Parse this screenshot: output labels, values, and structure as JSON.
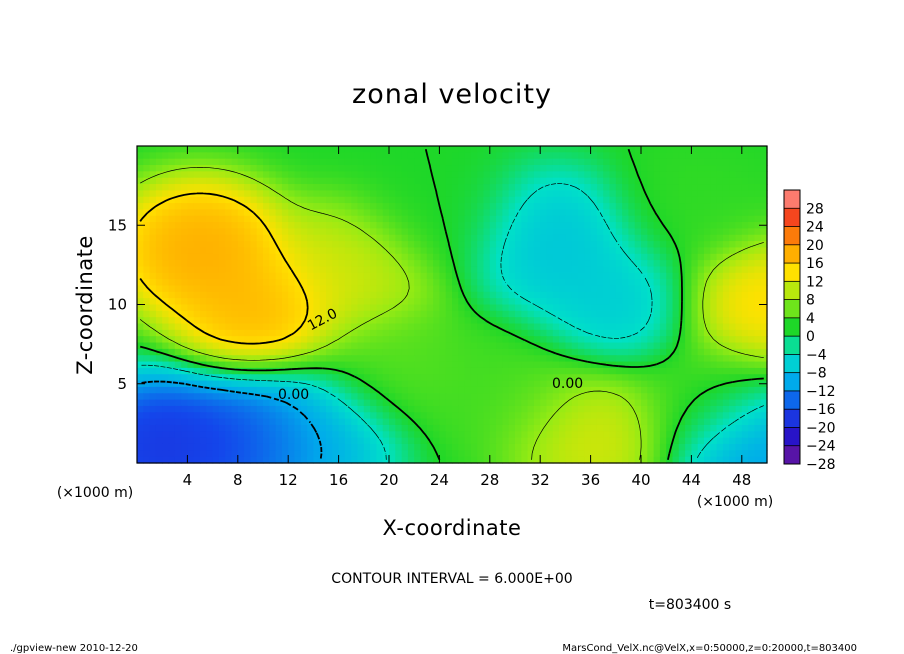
{
  "chart_data": {
    "type": "heatmap",
    "title": "zonal velocity",
    "xlabel": "X-coordinate",
    "ylabel": "Z-coordinate",
    "x_unit": "(×1000 m)",
    "y_unit": "(×1000 m)",
    "x_ticks": [
      "4",
      "8",
      "12",
      "16",
      "20",
      "24",
      "28",
      "32",
      "36",
      "40",
      "44",
      "48"
    ],
    "y_ticks": [
      "5",
      "10",
      "15"
    ],
    "xlim": [
      0,
      50
    ],
    "ylim": [
      0,
      20
    ],
    "contour_interval_text": "CONTOUR INTERVAL = 6.000E+00",
    "contour_labels": [
      "12.0",
      "0.00",
      "0.00"
    ],
    "time_text": "t=803400 s",
    "colorbar": {
      "labels": [
        "28",
        "24",
        "20",
        "16",
        "12",
        "8",
        "4",
        "0",
        "−4",
        "−8",
        "−12",
        "−16",
        "−20",
        "−24",
        "−28"
      ],
      "range": [
        -30,
        30
      ]
    },
    "field_centers": [
      {
        "x": 5,
        "z": 13.5,
        "u": 18
      },
      {
        "x": 10,
        "z": 9.5,
        "u": 17
      },
      {
        "x": 17,
        "z": 12,
        "u": 10
      },
      {
        "x": 2,
        "z": 1,
        "u": -22
      },
      {
        "x": 9,
        "z": 1.5,
        "u": -20
      },
      {
        "x": 14,
        "z": 2,
        "u": -12
      },
      {
        "x": 33,
        "z": 14,
        "u": -10
      },
      {
        "x": 38,
        "z": 10,
        "u": -9
      },
      {
        "x": 36,
        "z": 2,
        "u": 11
      },
      {
        "x": 30,
        "z": 4.5,
        "u": 2
      },
      {
        "x": 49.5,
        "z": 10,
        "u": 14
      },
      {
        "x": 49,
        "z": 1,
        "u": -15
      },
      {
        "x": 24,
        "z": 16,
        "u": 0
      },
      {
        "x": 44,
        "z": 16,
        "u": 1
      },
      {
        "x": 20,
        "z": 6,
        "u": 3
      },
      {
        "x": 45,
        "z": 4,
        "u": 2
      }
    ]
  },
  "footer": {
    "left": "./gpview-new  2010-12-20",
    "right": "MarsCond_VelX.nc@VelX,x=0:50000,z=0:20000,t=803400"
  }
}
